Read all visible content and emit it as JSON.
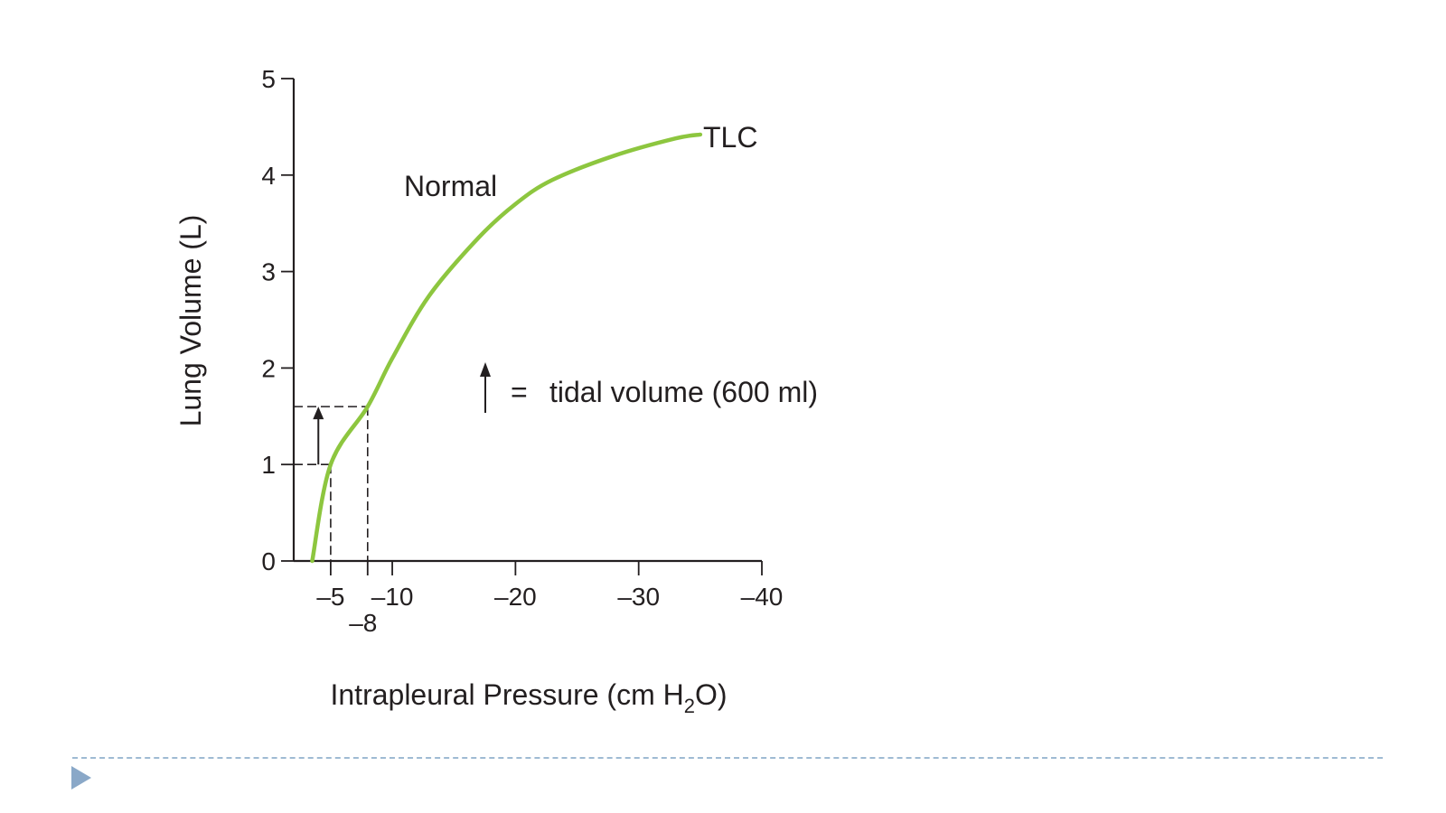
{
  "chart_data": {
    "type": "line",
    "xlabel": "Intrapleural Pressure (cm H2O)",
    "xlabel_parts": {
      "main": "Intrapleural Pressure (cm H",
      "sub": "2",
      "tail": "O)"
    },
    "ylabel": "Lung Volume (L)",
    "xlim": [
      -2,
      -40
    ],
    "ylim": [
      0,
      5
    ],
    "x_ticks": [
      -5,
      -8,
      -10,
      -20,
      -30,
      -40
    ],
    "x_tick_labels": [
      "–5",
      "–8",
      "–10",
      "–20",
      "–30",
      "–40"
    ],
    "y_ticks": [
      0,
      1,
      2,
      3,
      4,
      5
    ],
    "y_tick_labels": [
      "0",
      "1",
      "2",
      "3",
      "4",
      "5"
    ],
    "series": [
      {
        "name": "Normal",
        "color": "#8dc63f",
        "x": [
          -3.5,
          -5,
          -8,
          -10,
          -13,
          -17,
          -20,
          -23,
          -28,
          -33,
          -35
        ],
        "y": [
          0,
          1.0,
          1.6,
          2.1,
          2.75,
          3.35,
          3.7,
          3.95,
          4.2,
          4.38,
          4.42
        ]
      }
    ],
    "tidal_volume_marker": {
      "x_start": -5,
      "x_end": -8,
      "y_start": 1.0,
      "y_end": 1.6,
      "arrow_x": -4
    },
    "annotations": {
      "curve_label": "Normal",
      "end_label": "TLC",
      "legend_equals": "=",
      "legend_text": "tidal volume (600 ml)"
    }
  },
  "colors": {
    "curve": "#8dc63f",
    "axis": "#231f20",
    "footer_rule": "#9fbad3",
    "footer_marker": "#8aa8c8"
  },
  "footer": {
    "marker_icon": "play-triangle-icon"
  }
}
